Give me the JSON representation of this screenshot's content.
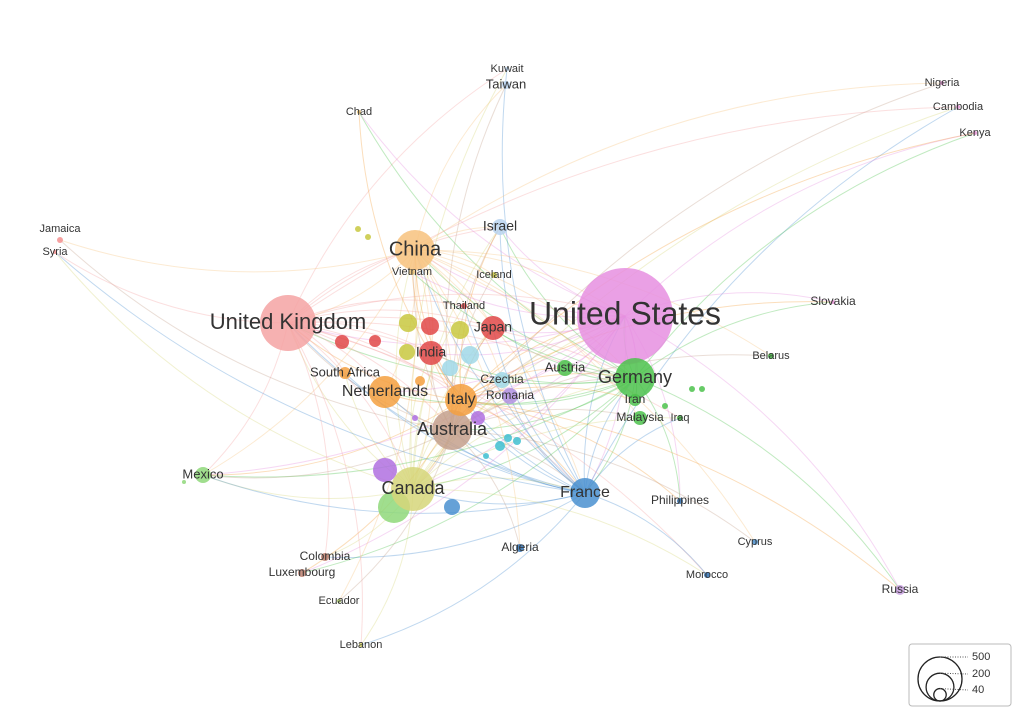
{
  "nodes": [
    {
      "label": "United States",
      "color": "#e68fe0"
    },
    {
      "label": "United Kingdom",
      "color": "#f4a3a3"
    },
    {
      "label": "China",
      "color": "#f7c27e"
    },
    {
      "label": "Germany",
      "color": "#4cc24c"
    },
    {
      "label": "Canada",
      "color": "#d6d67a"
    },
    {
      "label": "Australia",
      "color": "#c4a08c"
    },
    {
      "label": "Netherlands",
      "color": "#f4a040"
    },
    {
      "label": "Italy",
      "color": "#f4a040"
    },
    {
      "label": "France",
      "color": "#4a90d0"
    },
    {
      "label": "Japan",
      "color": "#e04848"
    },
    {
      "label": "India",
      "color": "#e04848"
    },
    {
      "label": "Israel",
      "color": "#b8d4f0"
    },
    {
      "label": "Mexico",
      "color": "#8fd87a"
    },
    {
      "label": "Taiwan",
      "color": "#b8d4f0"
    },
    {
      "label": "Kuwait",
      "color": "#b8d4f0"
    },
    {
      "label": "Chad",
      "color": "#e8c070"
    },
    {
      "label": "Nigeria",
      "color": "#e090d0"
    },
    {
      "label": "Cambodia",
      "color": "#e090d0"
    },
    {
      "label": "Kenya",
      "color": "#e090d0"
    },
    {
      "label": "Jamaica",
      "color": "#f49090"
    },
    {
      "label": "Syria",
      "color": "#f49090"
    },
    {
      "label": "Vietnam",
      "color": "#e8c070"
    },
    {
      "label": "Iceland",
      "color": "#c8c840"
    },
    {
      "label": "Thailand",
      "color": "#e04848"
    },
    {
      "label": "Slovakia",
      "color": "#e090d0"
    },
    {
      "label": "Belarus",
      "color": "#40b040"
    },
    {
      "label": "South Africa",
      "color": "#f4a040"
    },
    {
      "label": "Austria",
      "color": "#4cc24c"
    },
    {
      "label": "Czechia",
      "color": "#a0d8e8"
    },
    {
      "label": "Romania",
      "color": "#b090e0"
    },
    {
      "label": "Iran",
      "color": "#4cc24c"
    },
    {
      "label": "Malaysia",
      "color": "#4cc24c"
    },
    {
      "label": "Iraq",
      "color": "#40b040"
    },
    {
      "label": "Philippines",
      "color": "#3070b0"
    },
    {
      "label": "Cyprus",
      "color": "#4a90d0"
    },
    {
      "label": "Colombia",
      "color": "#c08070"
    },
    {
      "label": "Luxembourg",
      "color": "#c08070"
    },
    {
      "label": "Algeria",
      "color": "#3070b0"
    },
    {
      "label": "Morocco",
      "color": "#3070b0"
    },
    {
      "label": "Russia",
      "color": "#c8a0e0"
    },
    {
      "label": "Ecuador",
      "color": "#a0c060"
    },
    {
      "label": "Lebanon",
      "color": "#d0d060"
    }
  ],
  "legend": {
    "values": [
      500,
      200,
      40
    ]
  }
}
